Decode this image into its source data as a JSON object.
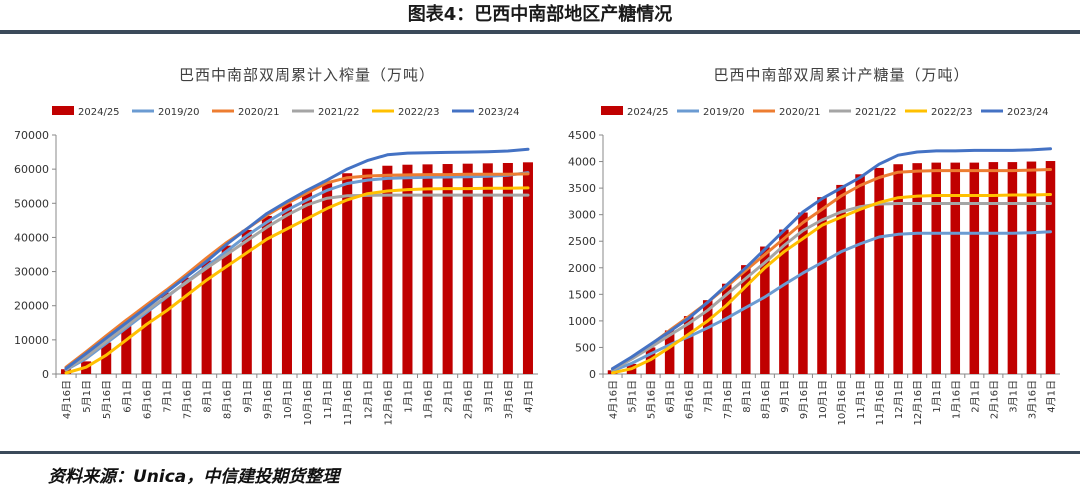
{
  "page": {
    "figure_title": "图表4：巴西中南部地区产糖情况",
    "source": "资料来源：Unica，中信建投期货整理"
  },
  "colors": {
    "2024/25": "#c00000",
    "2019/20": "#6b9bd2",
    "2020/21": "#ed7d31",
    "2021/22": "#a5a5a5",
    "2022/23": "#ffc000",
    "2023/24": "#4472c4"
  },
  "chart_data": [
    {
      "type": "bar+line",
      "title": "巴西中南部双周累计入榨量（万吨）",
      "categories": [
        "4月16日",
        "5月1日",
        "5月16日",
        "6月1日",
        "6月16日",
        "7月1日",
        "7月16日",
        "8月1日",
        "8月16日",
        "9月1日",
        "9月16日",
        "10月1日",
        "10月16日",
        "11月1日",
        "11月16日",
        "12月1日",
        "12月16日",
        "1月1日",
        "1月16日",
        "2月1日",
        "2月16日",
        "3月1日",
        "3月16日",
        "4月1日"
      ],
      "ylim": [
        0,
        70000
      ],
      "yticks": [
        "0",
        "10000",
        "20000",
        "30000",
        "40000",
        "50000",
        "60000",
        "70000"
      ],
      "legend": [
        "2024/25",
        "2019/20",
        "2020/21",
        "2021/22",
        "2022/23",
        "2023/24"
      ],
      "bar_series": {
        "name": "2024/25",
        "values": [
          1400,
          3700,
          9200,
          14000,
          19000,
          23800,
          28200,
          33200,
          37600,
          42200,
          46300,
          50000,
          53600,
          56600,
          58800,
          60100,
          61000,
          61300,
          61400,
          61500,
          61600,
          61700,
          61800,
          62000
        ]
      },
      "line_series": [
        {
          "name": "2019/20",
          "values": [
            1200,
            4500,
            9000,
            13500,
            18000,
            22500,
            27000,
            31500,
            36000,
            40500,
            44500,
            48000,
            51000,
            53800,
            55800,
            56800,
            57300,
            57500,
            57600,
            57700,
            57800,
            57900,
            58200,
            59000
          ]
        },
        {
          "name": "2020/21",
          "values": [
            2000,
            6500,
            11200,
            15800,
            20200,
            24600,
            29200,
            34000,
            38500,
            42500,
            46500,
            50000,
            53000,
            56000,
            57500,
            58000,
            58200,
            58300,
            58400,
            58400,
            58500,
            58500,
            58500,
            58600
          ]
        },
        {
          "name": "2021/22",
          "values": [
            1300,
            5000,
            9500,
            14000,
            18500,
            22700,
            26800,
            31000,
            35000,
            39000,
            43000,
            46500,
            49500,
            51500,
            52200,
            52300,
            52400,
            52400,
            52400,
            52400,
            52400,
            52400,
            52400,
            52400
          ]
        },
        {
          "name": "2022/23",
          "values": [
            300,
            2000,
            5500,
            10000,
            14500,
            18500,
            23000,
            27500,
            31500,
            35500,
            39500,
            42500,
            45500,
            48500,
            51000,
            52800,
            53600,
            54000,
            54200,
            54300,
            54300,
            54400,
            54400,
            54500
          ]
        },
        {
          "name": "2023/24",
          "values": [
            1600,
            6000,
            10500,
            15000,
            19500,
            24000,
            28500,
            33000,
            38000,
            42500,
            47000,
            50500,
            53800,
            56800,
            60000,
            62500,
            64200,
            64700,
            64800,
            64900,
            65000,
            65100,
            65300,
            65800
          ]
        }
      ]
    },
    {
      "type": "bar+line",
      "title": "巴西中南部双周累计产糖量（万吨）",
      "categories": [
        "4月16日",
        "5月1日",
        "5月16日",
        "6月1日",
        "6月16日",
        "7月1日",
        "7月16日",
        "8月1日",
        "8月16日",
        "9月1日",
        "9月16日",
        "10月1日",
        "10月16日",
        "11月1日",
        "11月16日",
        "12月1日",
        "12月16日",
        "1月1日",
        "1月16日",
        "2月1日",
        "2月16日",
        "3月1日",
        "3月16日",
        "4月1日"
      ],
      "ylim": [
        0,
        4500
      ],
      "yticks": [
        "0",
        "500",
        "1000",
        "1500",
        "2000",
        "2500",
        "3000",
        "3500",
        "4000",
        "4500"
      ],
      "legend": [
        "2024/25",
        "2019/20",
        "2020/21",
        "2021/22",
        "2022/23",
        "2023/24"
      ],
      "bar_series": {
        "name": "2024/25",
        "values": [
          70,
          190,
          500,
          820,
          1090,
          1390,
          1700,
          2050,
          2400,
          2720,
          3040,
          3330,
          3560,
          3760,
          3880,
          3950,
          3970,
          3980,
          3980,
          3980,
          3990,
          3990,
          4000,
          4010
        ]
      },
      "line_series": [
        {
          "name": "2019/20",
          "values": [
            60,
            200,
            380,
            550,
            700,
            870,
            1050,
            1250,
            1450,
            1680,
            1900,
            2100,
            2300,
            2450,
            2580,
            2630,
            2650,
            2650,
            2650,
            2650,
            2650,
            2650,
            2660,
            2680
          ]
        },
        {
          "name": "2020/21",
          "values": [
            100,
            300,
            550,
            820,
            1080,
            1350,
            1650,
            1950,
            2250,
            2550,
            2850,
            3100,
            3350,
            3550,
            3700,
            3800,
            3820,
            3830,
            3830,
            3830,
            3830,
            3830,
            3840,
            3850
          ]
        },
        {
          "name": "2021/22",
          "values": [
            80,
            280,
            500,
            730,
            950,
            1200,
            1500,
            1800,
            2100,
            2420,
            2700,
            2900,
            3050,
            3150,
            3200,
            3210,
            3210,
            3210,
            3210,
            3210,
            3210,
            3210,
            3210,
            3210
          ]
        },
        {
          "name": "2022/23",
          "values": [
            20,
            100,
            270,
            500,
            750,
            1000,
            1300,
            1650,
            2000,
            2300,
            2550,
            2800,
            2950,
            3100,
            3230,
            3320,
            3350,
            3360,
            3360,
            3360,
            3360,
            3370,
            3370,
            3380
          ]
        },
        {
          "name": "2023/24",
          "values": [
            100,
            320,
            560,
            800,
            1050,
            1350,
            1680,
            2000,
            2350,
            2700,
            3050,
            3300,
            3500,
            3700,
            3950,
            4120,
            4180,
            4200,
            4200,
            4210,
            4210,
            4210,
            4220,
            4240
          ]
        }
      ]
    }
  ]
}
